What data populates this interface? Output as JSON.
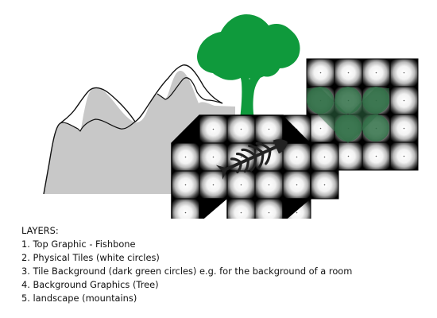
{
  "legend": {
    "heading": "LAYERS:",
    "items": [
      "1. Top Graphic - Fishbone",
      "2. Physical Tiles (white circles)",
      "3. Tile Background (dark green circles) e.g. for the background of a room",
      "4. Background Graphics (Tree)",
      "5. landscape (mountains)"
    ]
  },
  "colors": {
    "mountain_fill": "#c8c8c8",
    "mountain_outline": "#111111",
    "tree": "#0f9a3c",
    "tile_background": "#2f6e45",
    "tile_light": "#ffffff",
    "tile_dark": "#000000",
    "fishbone": "#222222"
  }
}
